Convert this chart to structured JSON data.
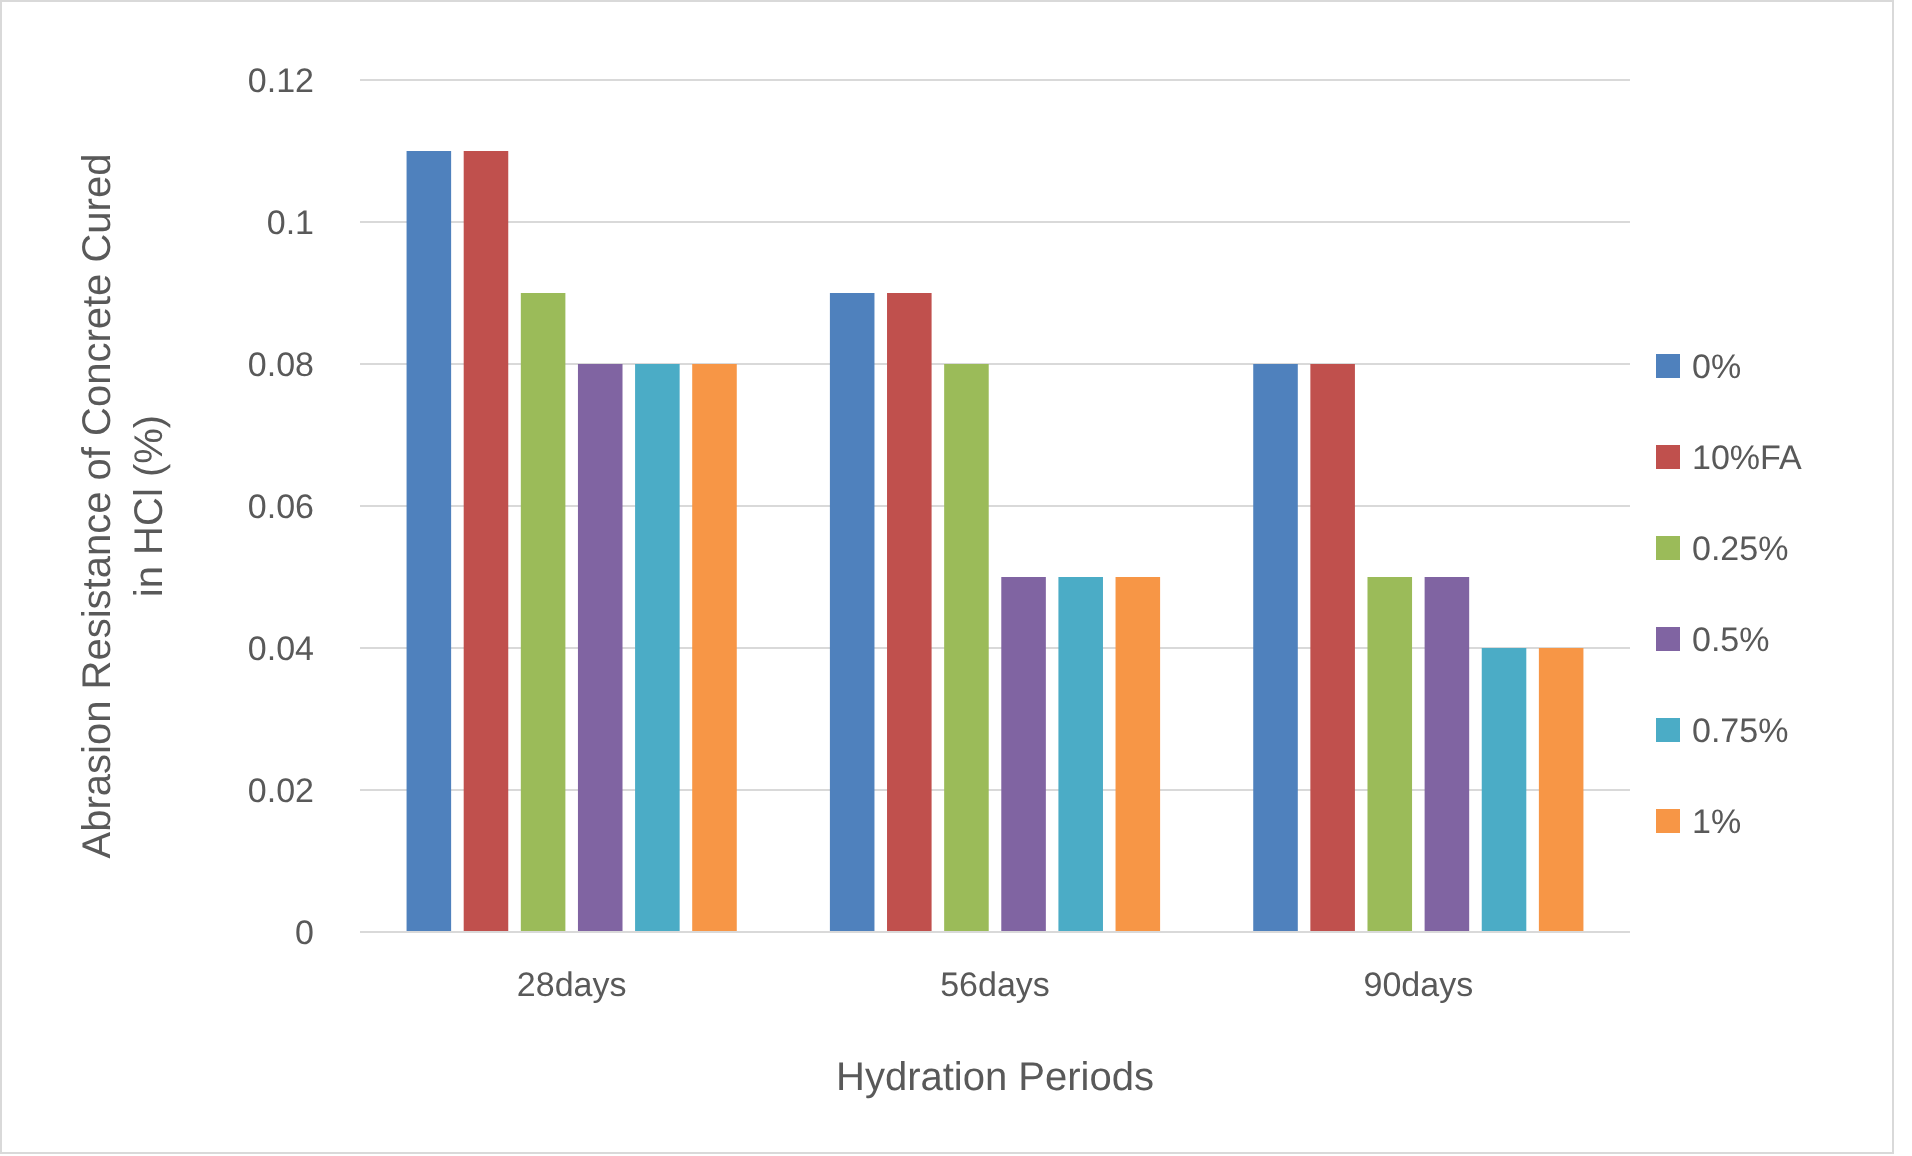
{
  "chart_data": {
    "type": "bar",
    "xlabel": "Hydration Periods",
    "ylabel": "Abrasion Resistance of Concrete Cured in HCl (%)",
    "categories": [
      "28days",
      "56days",
      "90days"
    ],
    "series": [
      {
        "name": "0%",
        "color": "#4f81bd",
        "values": [
          0.11,
          0.09,
          0.08
        ]
      },
      {
        "name": "10%FA",
        "color": "#c0504d",
        "values": [
          0.11,
          0.09,
          0.08
        ]
      },
      {
        "name": "0.25%",
        "color": "#9bbb59",
        "values": [
          0.09,
          0.08,
          0.05
        ]
      },
      {
        "name": "0.5%",
        "color": "#8064a2",
        "values": [
          0.08,
          0.05,
          0.05
        ]
      },
      {
        "name": "0.75%",
        "color": "#4bacc6",
        "values": [
          0.08,
          0.05,
          0.04
        ]
      },
      {
        "name": "1%",
        "color": "#f79646",
        "values": [
          0.08,
          0.05,
          0.04
        ]
      }
    ],
    "ylim": [
      0,
      0.12
    ],
    "yticks": [
      0,
      0.02,
      0.04,
      0.06,
      0.08,
      0.1,
      0.12
    ],
    "grid": "y",
    "legend": "right"
  }
}
